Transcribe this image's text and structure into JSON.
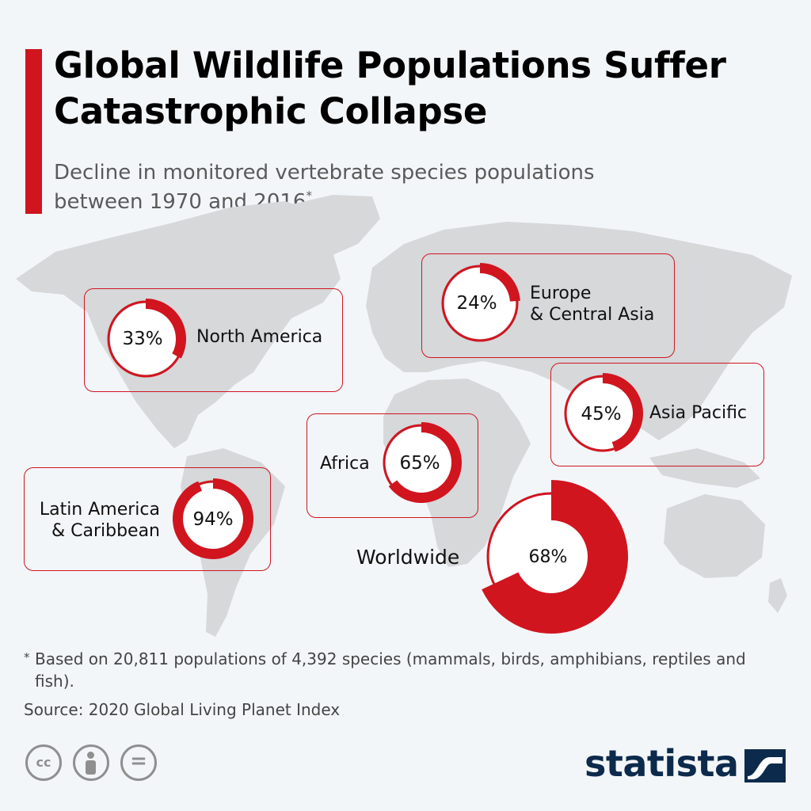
{
  "header": {
    "title": "Global Wildlife Populations Suffer Catastrophic Collapse",
    "subtitle": "Decline in monitored vertebrate species populations between 1970 and 2016",
    "subtitle_marker": "*"
  },
  "colors": {
    "accent": "#d0151f",
    "remainder": "#ffffff",
    "map": "#d6d8da",
    "background": "#f3f6f9",
    "brand": "#0c2a4c"
  },
  "chart_data": {
    "type": "pie",
    "variant": "donut",
    "categories": [
      "North America",
      "Europe & Central Asia",
      "Asia Pacific",
      "Africa",
      "Latin America & Caribbean",
      "Worldwide"
    ],
    "values": [
      33,
      24,
      45,
      65,
      94,
      68
    ],
    "unit": "%",
    "labels": [
      "33%",
      "24%",
      "45%",
      "65%",
      "94%",
      "68%"
    ],
    "region_labels": [
      "North America",
      "Europe\n& Central Asia",
      "Asia Pacific",
      "Africa",
      "Latin America\n& Caribbean",
      "Worldwide"
    ],
    "legend": "none"
  },
  "footer": {
    "footnote_marker": "*",
    "footnote": "Based on 20,811 populations of 4,392 species (mammals, birds, amphibians, reptiles and fish).",
    "source": "Source: 2020 Global Living Planet Index",
    "license_cc": "cc",
    "license_nd": "=",
    "brand": "statista"
  }
}
